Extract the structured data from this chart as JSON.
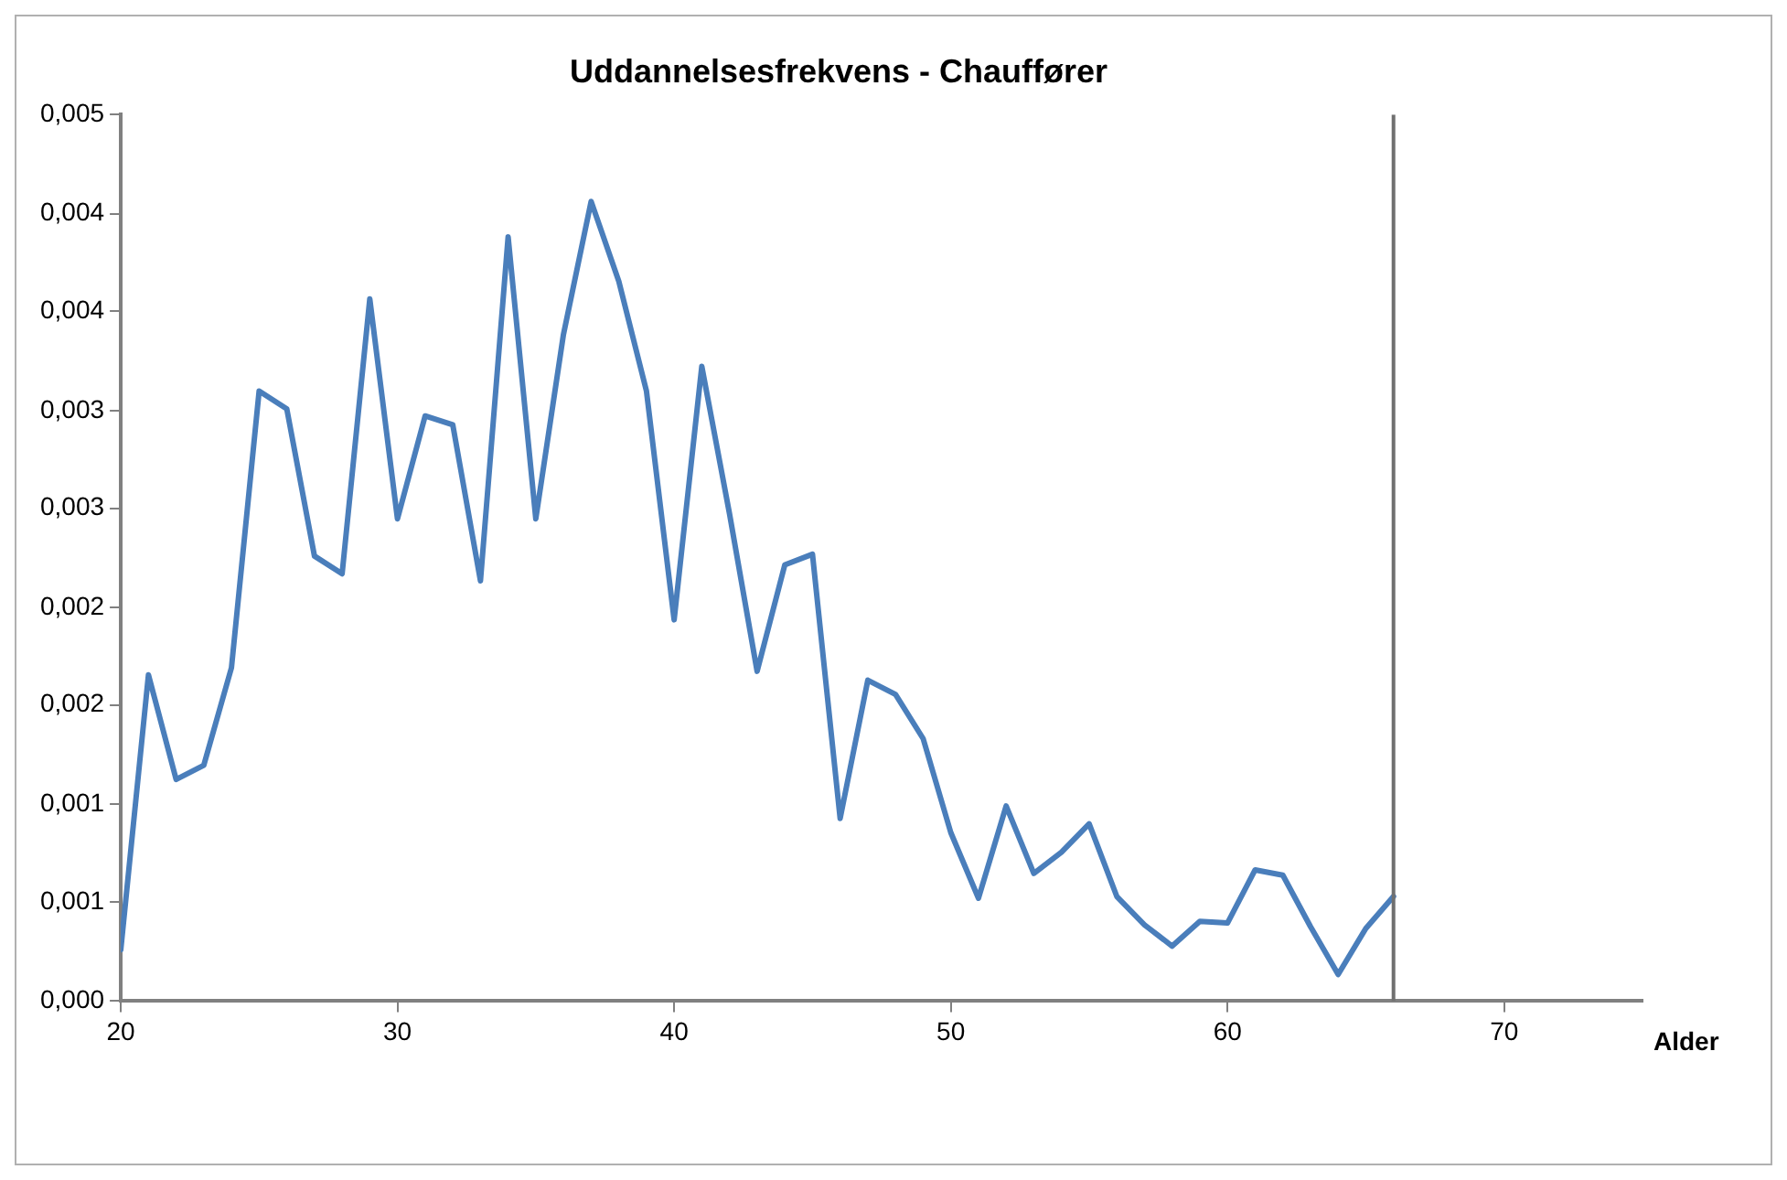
{
  "chart_data": {
    "type": "line",
    "title": "Uddannelsesfrekvens - Chauffører",
    "xlabel": "Alder",
    "x": [
      20,
      21,
      22,
      23,
      24,
      25,
      26,
      27,
      28,
      29,
      30,
      31,
      32,
      33,
      34,
      35,
      36,
      37,
      38,
      39,
      40,
      41,
      42,
      43,
      44,
      45,
      46,
      47,
      48,
      49,
      50,
      51,
      52,
      53,
      54,
      55,
      56,
      57,
      58,
      59,
      60,
      61,
      62,
      63,
      64,
      65,
      66
    ],
    "series": [
      {
        "color": "#4a7ebb",
        "values": [
          0.00029,
          0.00184,
          0.00125,
          0.00133,
          0.00188,
          0.00344,
          0.00334,
          0.00251,
          0.00241,
          0.00396,
          0.00272,
          0.0033,
          0.00325,
          0.00237,
          0.00431,
          0.00272,
          0.00376,
          0.00451,
          0.00406,
          0.00344,
          0.00215,
          0.00358,
          0.00275,
          0.00186,
          0.00246,
          0.00252,
          0.00103,
          0.00181,
          0.00173,
          0.00148,
          0.00095,
          0.00058,
          0.0011,
          0.00072,
          0.00084,
          0.001,
          0.00059,
          0.00043,
          0.00031,
          0.00045,
          0.00044,
          0.00074,
          0.00071,
          0.00042,
          0.00015,
          0.00041,
          0.00059
        ]
      }
    ],
    "xlim": [
      20,
      75
    ],
    "xticks": [
      20,
      30,
      40,
      50,
      60,
      70
    ],
    "ylim": [
      0,
      0.005
    ],
    "yticks": [
      {
        "value": 0,
        "label": "0,000"
      },
      {
        "value": 0.00056,
        "label": "0,001"
      },
      {
        "value": 0.00111,
        "label": "0,001"
      },
      {
        "value": 0.00167,
        "label": "0,002"
      },
      {
        "value": 0.00222,
        "label": "0,002"
      },
      {
        "value": 0.00278,
        "label": "0,003"
      },
      {
        "value": 0.00333,
        "label": "0,003"
      },
      {
        "value": 0.00389,
        "label": "0,004"
      },
      {
        "value": 0.00444,
        "label": "0,004"
      },
      {
        "value": 0.005,
        "label": "0,005"
      }
    ],
    "ref_lines": [
      {
        "axis": "x",
        "value": 66,
        "color": "#707070"
      }
    ],
    "grid": false,
    "legend": false,
    "marker": "none",
    "line_style": "solid"
  }
}
